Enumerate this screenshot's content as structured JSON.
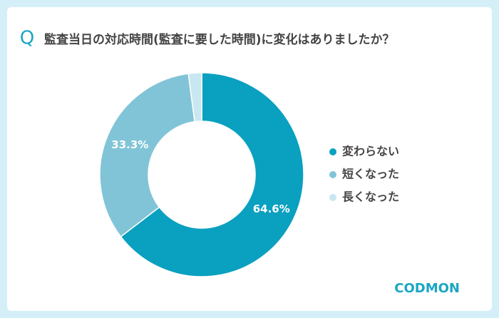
{
  "chart_data": {
    "type": "donut",
    "title_marker": "Q",
    "title": "監査当日の対応時間(監査に要した時間)に変化はありましたか？",
    "categories": [
      "変わらない",
      "短くなった",
      "長くなった"
    ],
    "values": [
      64.6,
      33.3,
      2.1
    ],
    "value_labels": [
      "64.6%",
      "33.3%",
      null
    ],
    "colors": [
      "#0aa0c0",
      "#82c4d7",
      "#c9e7f0"
    ],
    "legend": "right"
  },
  "logo": "CODMON"
}
